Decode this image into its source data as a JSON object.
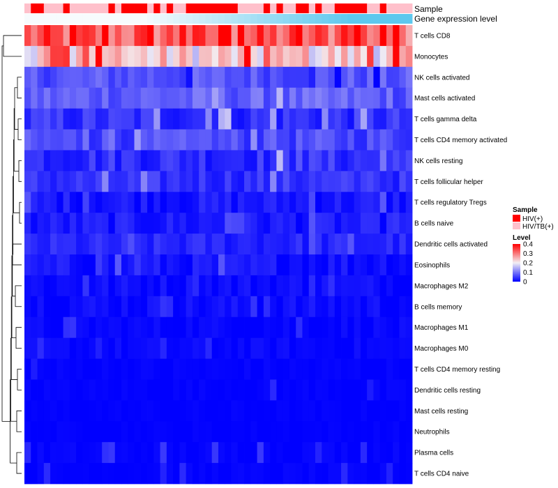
{
  "chart_data": {
    "type": "heatmap",
    "title": "",
    "annotations": {
      "sample_label": "Sample",
      "expression_label": "Gene expression level",
      "sample_groups": [
        "HIV/TB(+)",
        "HIV(+)",
        "HIV(+)",
        "HIV/TB(+)",
        "HIV/TB(+)",
        "HIV/TB(+)",
        "HIV(+)",
        "HIV/TB(+)",
        "HIV/TB(+)",
        "HIV/TB(+)",
        "HIV/TB(+)",
        "HIV/TB(+)",
        "HIV/TB(+)",
        "HIV(+)",
        "HIV/TB(+)",
        "HIV(+)",
        "HIV(+)",
        "HIV(+)",
        "HIV(+)",
        "HIV/TB(+)",
        "HIV(+)",
        "HIV/TB(+)",
        "HIV(+)",
        "HIV/TB(+)",
        "HIV/TB(+)",
        "HIV(+)",
        "HIV(+)",
        "HIV(+)",
        "HIV(+)",
        "HIV(+)",
        "HIV(+)",
        "HIV(+)",
        "HIV(+)",
        "HIV/TB(+)",
        "HIV/TB(+)",
        "HIV/TB(+)",
        "HIV/TB(+)",
        "HIV(+)",
        "HIV/TB(+)",
        "HIV(+)",
        "HIV/TB(+)",
        "HIV/TB(+)",
        "HIV(+)",
        "HIV(+)",
        "HIV/TB(+)",
        "HIV(+)",
        "HIV/TB(+)",
        "HIV/TB(+)",
        "HIV(+)",
        "HIV(+)",
        "HIV(+)",
        "HIV(+)",
        "HIV(+)",
        "HIV/TB(+)",
        "HIV/TB(+)",
        "HIV(+)",
        "HIV/TB(+)",
        "HIV/TB(+)",
        "HIV/TB(+)",
        "HIV/TB(+)"
      ],
      "expression_gradient": [
        "#f7fbfd",
        "#5ec8ee"
      ]
    },
    "row_labels": [
      "T cells CD8",
      "Monocytes",
      "NK cells activated",
      "Mast cells activated",
      "T cells gamma delta",
      "T cells CD4 memory activated",
      "NK cells resting",
      "T cells follicular helper",
      "T cells regulatory  Tregs",
      "B cells naive",
      "Dendritic cells activated",
      "Eosinophils",
      "Macrophages M2",
      "B cells memory",
      "Macrophages M1",
      "Macrophages M0",
      "T cells CD4 memory resting",
      "Dendritic cells resting",
      "Mast cells resting",
      "Neutrophils",
      "Plasma cells",
      "T cells CD4 naive"
    ],
    "n_columns": 60,
    "row_profiles": [
      {
        "base": 0.32,
        "spread": 0.07,
        "bumps": [
          [
            7,
            0.12
          ],
          [
            12,
            0.1
          ],
          [
            19,
            0.12
          ],
          [
            24,
            0.1
          ],
          [
            30,
            0.13
          ],
          [
            31,
            0.13
          ],
          [
            33,
            0.13
          ],
          [
            42,
            0.12
          ],
          [
            49,
            0.12
          ],
          [
            51,
            0.13
          ],
          [
            55,
            0.12
          ],
          [
            57,
            0.12
          ]
        ]
      },
      {
        "base": 0.22,
        "spread": 0.07,
        "bumps": [
          [
            3,
            0.13
          ],
          [
            4,
            0.16
          ],
          [
            5,
            0.16
          ],
          [
            6,
            0.15
          ],
          [
            9,
            0.12
          ],
          [
            11,
            0.13
          ],
          [
            14,
            0.12
          ],
          [
            34,
            0.12
          ],
          [
            37,
            0.1
          ],
          [
            42,
            0.08
          ],
          [
            53,
            0.14
          ],
          [
            57,
            0.13
          ]
        ]
      },
      {
        "base": 0.07,
        "spread": 0.03,
        "bumps": [
          [
            25,
            -0.06
          ],
          [
            44,
            -0.06
          ],
          [
            48,
            -0.05
          ],
          [
            54,
            -0.06
          ]
        ]
      },
      {
        "base": 0.08,
        "spread": 0.03,
        "bumps": [
          [
            29,
            0.06
          ],
          [
            39,
            0.08
          ],
          [
            57,
            -0.05
          ]
        ]
      },
      {
        "base": 0.04,
        "spread": 0.03,
        "bumps": [
          [
            20,
            0.07
          ],
          [
            28,
            0.1
          ],
          [
            30,
            0.1
          ],
          [
            31,
            0.1
          ],
          [
            38,
            0.09
          ],
          [
            46,
            0.07
          ],
          [
            52,
            0.08
          ]
        ]
      },
      {
        "base": 0.06,
        "spread": 0.03,
        "bumps": [
          [
            9,
            0.05
          ],
          [
            13,
            0.04
          ],
          [
            17,
            0.04
          ],
          [
            27,
            0.04
          ],
          [
            35,
            0.05
          ],
          [
            37,
            0.04
          ]
        ]
      },
      {
        "base": 0.04,
        "spread": 0.03,
        "bumps": [
          [
            39,
            0.09
          ],
          [
            42,
            0.06
          ],
          [
            55,
            0.05
          ],
          [
            57,
            0.05
          ]
        ]
      },
      {
        "base": 0.04,
        "spread": 0.025,
        "bumps": [
          [
            12,
            0.05
          ],
          [
            18,
            0.05
          ],
          [
            38,
            0.05
          ],
          [
            40,
            0.04
          ],
          [
            53,
            0.04
          ]
        ]
      },
      {
        "base": 0.02,
        "spread": 0.02,
        "bumps": [
          [
            0,
            0.04
          ],
          [
            9,
            0.04
          ],
          [
            44,
            0.04
          ],
          [
            55,
            0.04
          ]
        ]
      },
      {
        "base": 0.02,
        "spread": 0.02,
        "bumps": [
          [
            31,
            0.05
          ],
          [
            32,
            0.05
          ],
          [
            33,
            0.05
          ],
          [
            44,
            0.05
          ],
          [
            57,
            0.04
          ]
        ]
      },
      {
        "base": 0.03,
        "spread": 0.02,
        "bumps": [
          [
            16,
            0.02
          ],
          [
            44,
            0.03
          ],
          [
            50,
            0.03
          ]
        ]
      },
      {
        "base": 0.015,
        "spread": 0.02,
        "bumps": [
          [
            11,
            0.05
          ],
          [
            14,
            0.05
          ],
          [
            17,
            0.04
          ],
          [
            30,
            0.04
          ]
        ]
      },
      {
        "base": 0.01,
        "spread": 0.015,
        "bumps": [
          [
            9,
            0.04
          ],
          [
            26,
            0.04
          ],
          [
            44,
            0.04
          ],
          [
            47,
            0.04
          ]
        ]
      },
      {
        "base": 0.01,
        "spread": 0.015,
        "bumps": [
          [
            21,
            0.04
          ],
          [
            22,
            0.04
          ],
          [
            35,
            0.04
          ],
          [
            37,
            0.03
          ]
        ]
      },
      {
        "base": 0.005,
        "spread": 0.01,
        "bumps": [
          [
            6,
            0.03
          ],
          [
            7,
            0.03
          ],
          [
            42,
            0.03
          ]
        ]
      },
      {
        "base": 0.005,
        "spread": 0.01,
        "bumps": [
          [
            2,
            0.03
          ],
          [
            11,
            0.03
          ],
          [
            21,
            0.03
          ],
          [
            28,
            0.03
          ]
        ]
      },
      {
        "base": 0.002,
        "spread": 0.006,
        "bumps": [
          [
            1,
            0.02
          ]
        ]
      },
      {
        "base": 0.002,
        "spread": 0.005,
        "bumps": [
          [
            38,
            0.03
          ],
          [
            53,
            0.02
          ]
        ]
      },
      {
        "base": 0.001,
        "spread": 0.004,
        "bumps": []
      },
      {
        "base": 0.001,
        "spread": 0.004,
        "bumps": []
      },
      {
        "base": 0.003,
        "spread": 0.006,
        "bumps": [
          [
            0,
            0.03
          ],
          [
            12,
            0.04
          ],
          [
            13,
            0.04
          ],
          [
            21,
            0.04
          ],
          [
            29,
            0.04
          ],
          [
            36,
            0.05
          ],
          [
            45,
            0.03
          ],
          [
            52,
            0.03
          ]
        ]
      },
      {
        "base": 0.002,
        "spread": 0.005,
        "bumps": [
          [
            3,
            0.03
          ],
          [
            21,
            0.03
          ],
          [
            24,
            0.03
          ],
          [
            49,
            0.03
          ],
          [
            56,
            0.03
          ]
        ]
      }
    ],
    "color_scale": {
      "stops": [
        0,
        0.2,
        0.4
      ],
      "colors": [
        "#0000ff",
        "#f3eff3",
        "#ff0000"
      ],
      "legend_ticks": [
        0.4,
        0.3,
        0.2,
        0.1,
        0
      ]
    },
    "legend": {
      "sample_title": "Sample",
      "sample_entries": [
        {
          "label": "HIV(+)",
          "color": "#ff0000"
        },
        {
          "label": "HIV/TB(+)",
          "color": "#ffc0cb"
        }
      ],
      "level_title": "Level",
      "level_tick_labels": [
        "0.4",
        "0.3",
        "0.2",
        "0.1",
        "0"
      ],
      "placement": "right"
    },
    "dendrogram": {
      "merges": [
        [
          8,
          9
        ],
        [
          6,
          7
        ],
        [
          4,
          5
        ],
        [
          2,
          3
        ],
        [
          16,
          17
        ],
        [
          18,
          19
        ],
        [
          20,
          21
        ],
        [
          14,
          15
        ],
        [
          12,
          13
        ],
        [
          10,
          11
        ],
        [
          0,
          1
        ]
      ]
    }
  }
}
